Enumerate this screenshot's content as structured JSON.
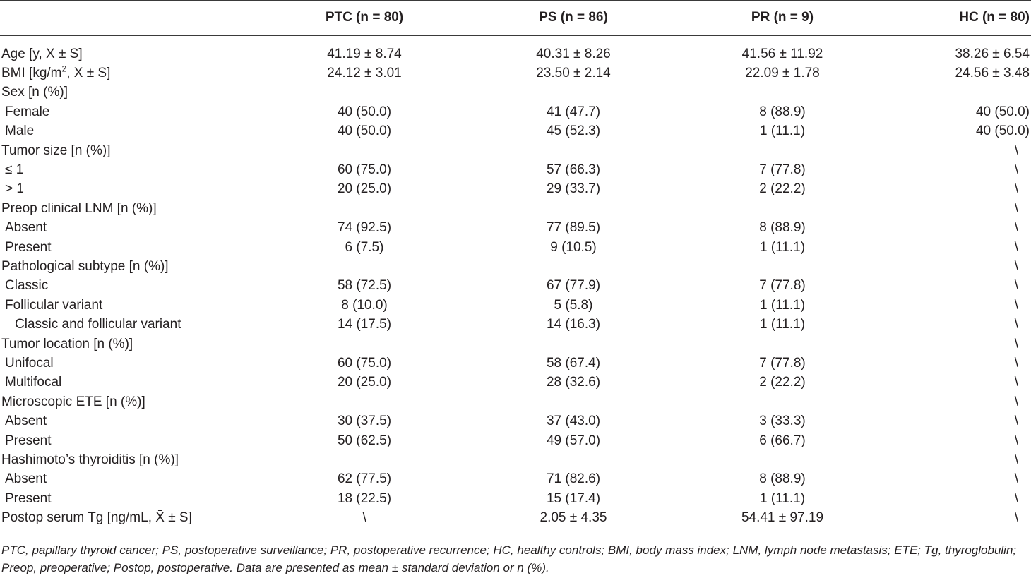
{
  "table": {
    "headers": [
      "PTC (n = 80)",
      "PS (n = 86)",
      "PR (n = 9)",
      "HC (n = 80)"
    ],
    "rows": [
      {
        "label": "Age [y, X ± S]",
        "indent": 0,
        "values": [
          "41.19 ± 8.74",
          "40.31 ± 8.26",
          "41.56 ± 11.92",
          "38.26 ± 6.54"
        ]
      },
      {
        "label_pre": "BMI [kg/m",
        "label_sup": "2",
        "label_post": ", X ± S]",
        "indent": 0,
        "values": [
          "24.12 ± 3.01",
          "23.50 ± 2.14",
          "22.09 ± 1.78",
          "24.56 ± 3.48"
        ]
      },
      {
        "label": "Sex [n (%)]",
        "indent": 0,
        "values": [
          "",
          "",
          "",
          ""
        ]
      },
      {
        "label": "Female",
        "indent": 1,
        "values": [
          "40 (50.0)",
          "41 (47.7)",
          "8 (88.9)",
          "40 (50.0)"
        ]
      },
      {
        "label": "Male",
        "indent": 1,
        "values": [
          "40 (50.0)",
          "45 (52.3)",
          "1 (11.1)",
          "40 (50.0)"
        ]
      },
      {
        "label": "Tumor size [n (%)]",
        "indent": 0,
        "values": [
          "",
          "",
          "",
          "\\"
        ]
      },
      {
        "label": "≤ 1",
        "indent": 1,
        "values": [
          "60 (75.0)",
          "57 (66.3)",
          "7 (77.8)",
          "\\"
        ]
      },
      {
        "label": "> 1",
        "indent": 1,
        "values": [
          "20 (25.0)",
          "29 (33.7)",
          "2 (22.2)",
          "\\"
        ]
      },
      {
        "label": "Preop clinical LNM [n (%)]",
        "indent": 0,
        "values": [
          "",
          "",
          "",
          "\\"
        ]
      },
      {
        "label": "Absent",
        "indent": 1,
        "values": [
          "74 (92.5)",
          "77 (89.5)",
          "8 (88.9)",
          "\\"
        ]
      },
      {
        "label": "Present",
        "indent": 1,
        "values": [
          "6 (7.5)",
          "9 (10.5)",
          "1 (11.1)",
          "\\"
        ]
      },
      {
        "label": "Pathological subtype [n (%)]",
        "indent": 0,
        "values": [
          "",
          "",
          "",
          "\\"
        ]
      },
      {
        "label": "Classic",
        "indent": 1,
        "values": [
          "58 (72.5)",
          "67 (77.9)",
          "7 (77.8)",
          "\\"
        ]
      },
      {
        "label": "Follicular variant",
        "indent": 1,
        "values": [
          "8 (10.0)",
          "5 (5.8)",
          "1 (11.1)",
          "\\"
        ]
      },
      {
        "label": "Classic and follicular variant",
        "indent": 2,
        "values": [
          "14 (17.5)",
          "14 (16.3)",
          "1 (11.1)",
          "\\"
        ]
      },
      {
        "label": "Tumor location [n (%)]",
        "indent": 0,
        "values": [
          "",
          "",
          "",
          "\\"
        ]
      },
      {
        "label": "Unifocal",
        "indent": 1,
        "values": [
          "60 (75.0)",
          "58 (67.4)",
          "7 (77.8)",
          "\\"
        ]
      },
      {
        "label": "Multifocal",
        "indent": 1,
        "values": [
          "20 (25.0)",
          "28 (32.6)",
          "2 (22.2)",
          "\\"
        ]
      },
      {
        "label": "Microscopic ETE [n (%)]",
        "indent": 0,
        "values": [
          "",
          "",
          "",
          "\\"
        ]
      },
      {
        "label": "Absent",
        "indent": 1,
        "values": [
          "30 (37.5)",
          "37 (43.0)",
          "3 (33.3)",
          "\\"
        ]
      },
      {
        "label": "Present",
        "indent": 1,
        "values": [
          "50 (62.5)",
          "49 (57.0)",
          "6 (66.7)",
          "\\"
        ]
      },
      {
        "label": "Hashimoto’s thyroiditis [n (%)]",
        "indent": 0,
        "values": [
          "",
          "",
          "",
          "\\"
        ]
      },
      {
        "label": "Absent",
        "indent": 1,
        "values": [
          "62 (77.5)",
          "71 (82.6)",
          "8 (88.9)",
          "\\"
        ]
      },
      {
        "label": "Present",
        "indent": 1,
        "values": [
          "18 (22.5)",
          "15 (17.4)",
          "1 (11.1)",
          "\\"
        ]
      },
      {
        "label": "Postop serum Tg [ng/mL, X̄ ± S]",
        "indent": 0,
        "values": [
          "\\",
          "2.05 ± 4.35",
          "54.41 ± 97.19",
          "\\"
        ]
      }
    ]
  },
  "footnote": "PTC, papillary thyroid cancer; PS, postoperative surveillance; PR, postoperative recurrence; HC, healthy controls; BMI, body mass index; LNM, lymph node metastasis; ETE; Tg, thyroglobulin; Preop, preoperative; Postop, postoperative. Data are presented as mean ± standard deviation or n (%)."
}
